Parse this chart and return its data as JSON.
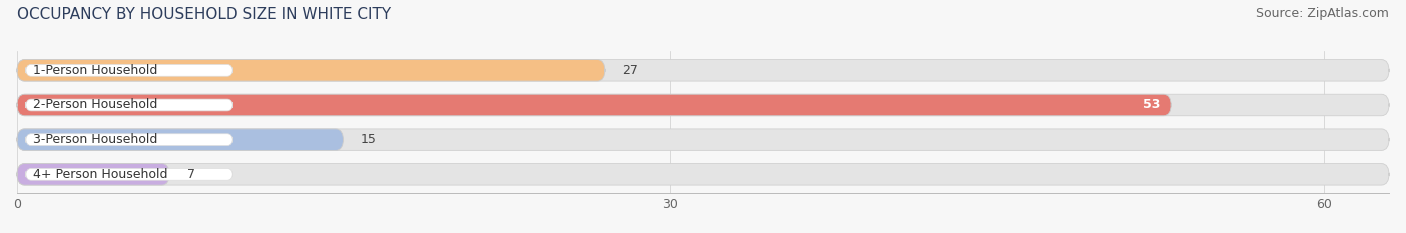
{
  "title": "OCCUPANCY BY HOUSEHOLD SIZE IN WHITE CITY",
  "source": "Source: ZipAtlas.com",
  "categories": [
    "1-Person Household",
    "2-Person Household",
    "3-Person Household",
    "4+ Person Household"
  ],
  "values": [
    27,
    53,
    15,
    7
  ],
  "bar_colors": [
    "#f5bf85",
    "#e57a72",
    "#aabfe0",
    "#c8ade0"
  ],
  "xlim": [
    0,
    63
  ],
  "xticks": [
    0,
    30,
    60
  ],
  "title_fontsize": 11,
  "source_fontsize": 9,
  "label_fontsize": 9,
  "value_fontsize": 9,
  "background_color": "#f7f7f7",
  "bar_background_color": "#e4e4e4",
  "bar_height": 0.62,
  "track_xlim": 63
}
